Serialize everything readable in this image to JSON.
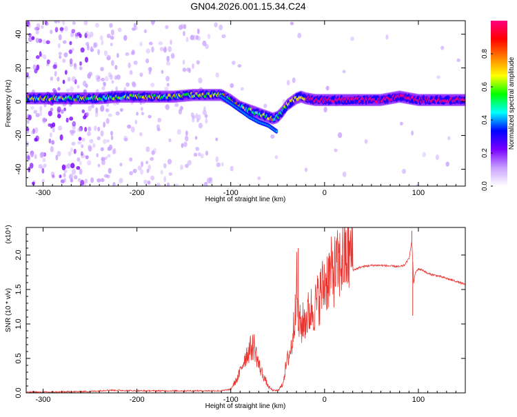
{
  "title": "GN04.2026.001.15.34.C24",
  "chart_data": [
    {
      "type": "heatmap",
      "xlabel": "Height of straight line (km)",
      "ylabel": "Frequency (Hz)",
      "xlim": [
        -318,
        150
      ],
      "ylim": [
        -50,
        48
      ],
      "x_ticks": [
        -300,
        -200,
        -100,
        0,
        100
      ],
      "y_ticks": [
        -40,
        -20,
        0,
        20,
        40
      ],
      "colorbar": {
        "label": "Normalized spectral amplitude",
        "range": [
          0,
          1
        ],
        "ticks": [
          "0.0",
          "0.2",
          "0.4",
          "0.6",
          "0.8"
        ],
        "tick_values": [
          0.0,
          0.2,
          0.4,
          0.6,
          0.8
        ],
        "colors": [
          "#ffffff",
          "#c8a0ff",
          "#7a00ff",
          "#0000ff",
          "#00ffff",
          "#00ff00",
          "#ffff00",
          "#ff8000",
          "#ff0000",
          "#ff0080"
        ]
      },
      "ridge": {
        "x": [
          -315,
          -300,
          -280,
          -260,
          -240,
          -220,
          -200,
          -180,
          -160,
          -140,
          -120,
          -110,
          -100,
          -90,
          -80,
          -70,
          -60,
          -55,
          -50,
          -45,
          -40,
          -35,
          -30,
          -25,
          -20,
          -10,
          0,
          10,
          20,
          40,
          60,
          70,
          80,
          90,
          100,
          120,
          150
        ],
        "y": [
          2,
          2,
          2,
          2,
          2,
          3,
          3,
          3,
          3,
          4,
          4,
          4,
          1,
          -3,
          -5,
          -7,
          -9,
          -10,
          -9,
          -6,
          -2,
          0,
          2,
          3,
          2,
          1,
          1,
          1,
          1,
          1,
          1,
          2,
          3,
          2,
          1,
          1,
          1
        ]
      },
      "lower_branch": {
        "x": [
          -110,
          -100,
          -90,
          -80,
          -70,
          -60,
          -55,
          -50
        ],
        "y": [
          3,
          -1,
          -5,
          -9,
          -12,
          -14,
          -16,
          -18
        ]
      }
    },
    {
      "type": "line",
      "xlabel": "Height of straight line (km)",
      "ylabel": "SNR (10 * v/v)",
      "y_multiplier": "(x10⁴)",
      "xlim": [
        -318,
        150
      ],
      "ylim": [
        0,
        2.4
      ],
      "x_ticks": [
        -300,
        -200,
        -100,
        0,
        100
      ],
      "y_ticks": [
        0.0,
        0.5,
        1.0,
        1.5,
        2.0
      ],
      "y_tick_labels": [
        "0.0",
        "0.5",
        "1.0",
        "1.5",
        "2.0"
      ],
      "color": "#e8342f",
      "series": [
        {
          "x": [
            -318,
            -300,
            -250,
            -230,
            -200,
            -150,
            -110,
            -100,
            -92,
            -85,
            -80,
            -75,
            -70,
            -60,
            -55,
            -50,
            -45,
            -40,
            -35,
            -32,
            -30,
            -28,
            -25,
            -20,
            -15,
            -10,
            -5,
            0,
            5,
            10,
            15,
            20,
            30,
            40,
            50,
            60,
            70,
            80,
            85,
            90,
            93,
            95,
            97,
            100,
            105,
            110,
            120,
            130,
            140,
            150
          ],
          "y": [
            0.01,
            0.01,
            0.02,
            0.04,
            0.03,
            0.03,
            0.03,
            0.05,
            0.2,
            0.45,
            0.55,
            0.6,
            0.35,
            0.08,
            0.03,
            0.03,
            0.1,
            0.4,
            0.6,
            0.95,
            1.5,
            0.9,
            0.85,
            0.95,
            1.05,
            1.1,
            1.25,
            1.4,
            1.5,
            1.55,
            1.62,
            1.7,
            1.78,
            1.83,
            1.85,
            1.85,
            1.84,
            1.83,
            1.85,
            1.95,
            2.2,
            1.6,
            1.75,
            1.8,
            1.78,
            1.73,
            1.7,
            1.66,
            1.62,
            1.57
          ]
        }
      ],
      "spikes": [
        {
          "x": -28,
          "y": 2.1
        },
        {
          "x": 93,
          "y": 2.35
        },
        {
          "x": 94,
          "y": 1.12
        }
      ]
    }
  ]
}
